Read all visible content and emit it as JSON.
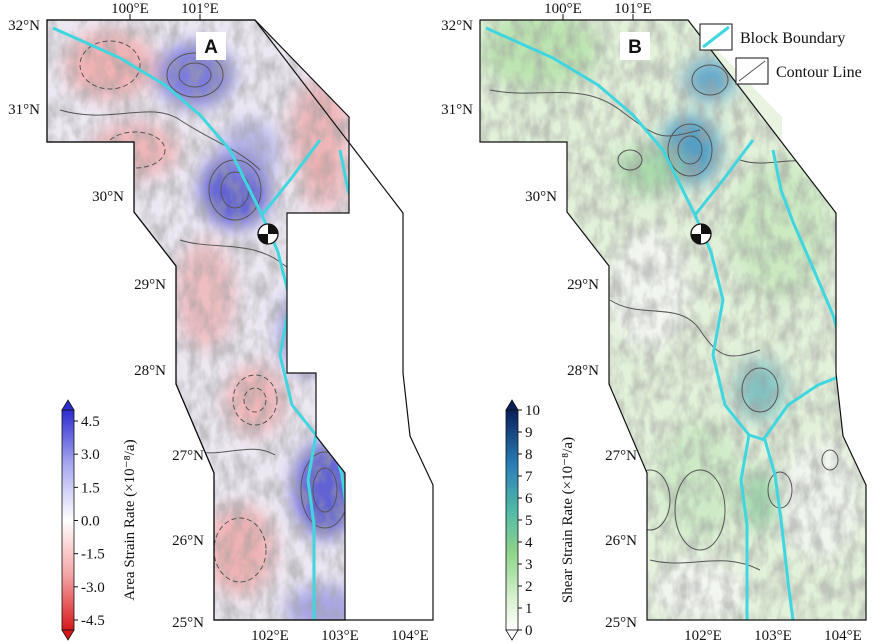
{
  "panels": [
    {
      "letter": "A",
      "x_ticks_top": [
        "100°E",
        "101°E"
      ],
      "x_ticks_bottom": [
        "102°E",
        "103°E",
        "104°E"
      ],
      "y_ticks": [
        "32°N",
        "31°N",
        "30°N",
        "29°N",
        "28°N",
        "27°N",
        "26°N",
        "25°N"
      ],
      "colorbar": {
        "label": "Area Strain Rate (×10⁻⁸/a)",
        "ticks": [
          "4.5",
          "3.0",
          "1.5",
          "0.0",
          "-1.5",
          "-3.0",
          "-4.5"
        ],
        "min": -4.5,
        "max": 4.5,
        "colors": [
          "#d7191c",
          "#f4a5a5",
          "#ffffff",
          "#a9a9f0",
          "#2c2cd0"
        ]
      }
    },
    {
      "letter": "B",
      "x_ticks_top": [
        "100°E",
        "101°E"
      ],
      "x_ticks_bottom": [
        "102°E",
        "103°E",
        "104°E"
      ],
      "y_ticks": [
        "32°N",
        "31°N",
        "30°N",
        "29°N",
        "28°N",
        "27°N",
        "26°N",
        "25°N"
      ],
      "colorbar": {
        "label": "Shear Strain Rate (×10⁻⁸/a)",
        "ticks": [
          "10",
          "9",
          "8",
          "7",
          "6",
          "5",
          "4",
          "3",
          "2",
          "1",
          "0"
        ],
        "min": 0,
        "max": 10,
        "colors": [
          "#ffffff",
          "#a8e0a0",
          "#4fb8a8",
          "#2a7fb8",
          "#0a1e5a"
        ]
      }
    }
  ],
  "legend": {
    "block_boundary_label": "Block Boundary",
    "contour_line_label": "Contour Line",
    "block_boundary_color": "#3fd6e0",
    "contour_color": "#555555"
  }
}
